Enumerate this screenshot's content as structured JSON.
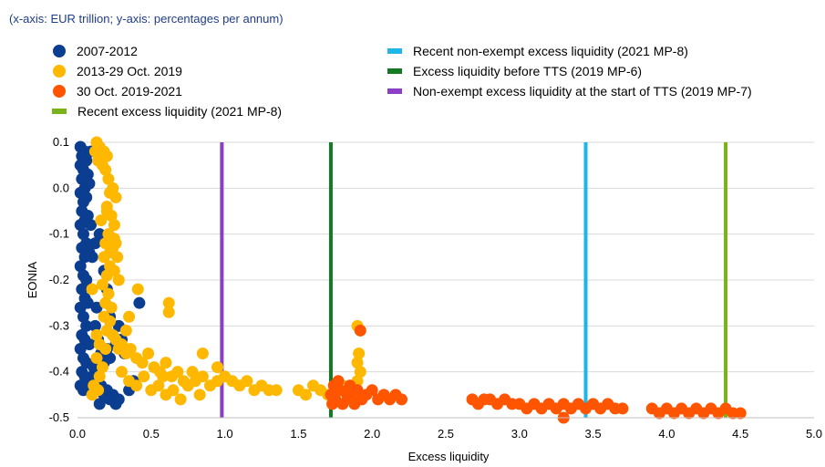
{
  "chart_data": {
    "type": "scatter",
    "subtitle": "(x-axis: EUR trillion; y-axis: percentages per annum)",
    "xlabel": "Excess liquidity",
    "ylabel": "EONIA",
    "xlim": [
      0,
      5
    ],
    "ylim": [
      -0.5,
      0.1
    ],
    "xticks": [
      "0.0",
      "0.5",
      "1.0",
      "1.5",
      "2.0",
      "2.5",
      "3.0",
      "3.5",
      "4.0",
      "4.5",
      "5.0"
    ],
    "yticks": [
      "0.1",
      "0.0",
      "-0.1",
      "-0.2",
      "-0.3",
      "-0.4",
      "-0.5"
    ],
    "grid": true,
    "legend_position": "top",
    "series": [
      {
        "name": "2007-2012",
        "kind": "scatter",
        "color": "#0b3d91",
        "points": [
          [
            0.02,
            0.09
          ],
          [
            0.03,
            0.07
          ],
          [
            0.05,
            0.08
          ],
          [
            0.02,
            0.05
          ],
          [
            0.04,
            0.04
          ],
          [
            0.06,
            0.06
          ],
          [
            0.03,
            0.02
          ],
          [
            0.05,
            0.0
          ],
          [
            0.02,
            -0.01
          ],
          [
            0.07,
            0.03
          ],
          [
            0.04,
            -0.03
          ],
          [
            0.06,
            -0.02
          ],
          [
            0.03,
            -0.05
          ],
          [
            0.05,
            -0.07
          ],
          [
            0.02,
            -0.08
          ],
          [
            0.07,
            -0.06
          ],
          [
            0.04,
            -0.1
          ],
          [
            0.06,
            -0.12
          ],
          [
            0.03,
            -0.13
          ],
          [
            0.05,
            -0.15
          ],
          [
            0.02,
            -0.17
          ],
          [
            0.08,
            -0.14
          ],
          [
            0.04,
            -0.19
          ],
          [
            0.06,
            -0.2
          ],
          [
            0.03,
            -0.22
          ],
          [
            0.05,
            -0.24
          ],
          [
            0.02,
            -0.26
          ],
          [
            0.07,
            -0.25
          ],
          [
            0.04,
            -0.28
          ],
          [
            0.06,
            -0.3
          ],
          [
            0.03,
            -0.32
          ],
          [
            0.05,
            -0.33
          ],
          [
            0.02,
            -0.35
          ],
          [
            0.08,
            -0.34
          ],
          [
            0.04,
            -0.37
          ],
          [
            0.06,
            -0.38
          ],
          [
            0.03,
            -0.4
          ],
          [
            0.05,
            -0.41
          ],
          [
            0.02,
            -0.43
          ],
          [
            0.07,
            -0.42
          ],
          [
            0.04,
            -0.44
          ],
          [
            0.09,
            -0.43
          ],
          [
            0.1,
            -0.41
          ],
          [
            0.11,
            -0.39
          ],
          [
            0.12,
            -0.42
          ],
          [
            0.14,
            -0.44
          ],
          [
            0.16,
            -0.43
          ],
          [
            0.18,
            -0.45
          ],
          [
            0.2,
            -0.44
          ],
          [
            0.22,
            -0.46
          ],
          [
            0.24,
            -0.45
          ],
          [
            0.26,
            -0.47
          ],
          [
            0.28,
            -0.46
          ],
          [
            0.15,
            -0.47
          ],
          [
            0.12,
            -0.3
          ],
          [
            0.14,
            -0.33
          ],
          [
            0.16,
            -0.36
          ],
          [
            0.18,
            -0.38
          ],
          [
            0.2,
            -0.35
          ],
          [
            0.22,
            -0.37
          ],
          [
            0.24,
            -0.32
          ],
          [
            0.26,
            -0.34
          ],
          [
            0.28,
            -0.3
          ],
          [
            0.3,
            -0.33
          ],
          [
            0.32,
            -0.36
          ],
          [
            0.1,
            -0.15
          ],
          [
            0.12,
            -0.12
          ],
          [
            0.15,
            -0.1
          ],
          [
            0.18,
            -0.18
          ],
          [
            0.2,
            -0.22
          ],
          [
            0.22,
            -0.28
          ],
          [
            0.13,
            -0.26
          ],
          [
            0.09,
            0.08
          ],
          [
            0.08,
            0.01
          ],
          [
            0.09,
            -0.08
          ],
          [
            0.42,
            -0.25
          ],
          [
            0.35,
            -0.44
          ],
          [
            0.38,
            -0.42
          ]
        ]
      },
      {
        "name": "2013-29 Oct. 2019",
        "kind": "scatter",
        "color": "#ffb800",
        "points": [
          [
            0.13,
            0.1
          ],
          [
            0.15,
            0.09
          ],
          [
            0.18,
            0.08
          ],
          [
            0.2,
            0.07
          ],
          [
            0.17,
            0.05
          ],
          [
            0.19,
            0.04
          ],
          [
            0.21,
            0.02
          ],
          [
            0.14,
            0.06
          ],
          [
            0.22,
            -0.01
          ],
          [
            0.26,
            -0.02
          ],
          [
            0.2,
            -0.04
          ],
          [
            0.23,
            -0.06
          ],
          [
            0.25,
            -0.08
          ],
          [
            0.21,
            -0.1
          ],
          [
            0.19,
            -0.12
          ],
          [
            0.24,
            -0.13
          ],
          [
            0.18,
            -0.15
          ],
          [
            0.22,
            -0.17
          ],
          [
            0.2,
            -0.19
          ],
          [
            0.25,
            -0.18
          ],
          [
            0.17,
            -0.21
          ],
          [
            0.21,
            -0.23
          ],
          [
            0.19,
            -0.25
          ],
          [
            0.23,
            -0.26
          ],
          [
            0.18,
            -0.28
          ],
          [
            0.22,
            -0.29
          ],
          [
            0.2,
            -0.31
          ],
          [
            0.24,
            -0.32
          ],
          [
            0.15,
            -0.34
          ],
          [
            0.19,
            -0.35
          ],
          [
            0.13,
            -0.37
          ],
          [
            0.17,
            -0.39
          ],
          [
            0.15,
            -0.41
          ],
          [
            0.11,
            -0.43
          ],
          [
            0.14,
            -0.44
          ],
          [
            0.1,
            -0.45
          ],
          [
            0.26,
            -0.33
          ],
          [
            0.28,
            -0.35
          ],
          [
            0.3,
            -0.34
          ],
          [
            0.33,
            -0.36
          ],
          [
            0.36,
            -0.35
          ],
          [
            0.4,
            -0.37
          ],
          [
            0.44,
            -0.38
          ],
          [
            0.48,
            -0.36
          ],
          [
            0.52,
            -0.39
          ],
          [
            0.56,
            -0.4
          ],
          [
            0.6,
            -0.38
          ],
          [
            0.64,
            -0.41
          ],
          [
            0.68,
            -0.4
          ],
          [
            0.72,
            -0.42
          ],
          [
            0.3,
            -0.4
          ],
          [
            0.35,
            -0.42
          ],
          [
            0.4,
            -0.43
          ],
          [
            0.45,
            -0.41
          ],
          [
            0.5,
            -0.44
          ],
          [
            0.55,
            -0.43
          ],
          [
            0.6,
            -0.45
          ],
          [
            0.65,
            -0.44
          ],
          [
            0.7,
            -0.46
          ],
          [
            0.75,
            -0.43
          ],
          [
            0.8,
            -0.42
          ],
          [
            0.85,
            -0.41
          ],
          [
            0.9,
            -0.43
          ],
          [
            0.95,
            -0.42
          ],
          [
            1.0,
            -0.41
          ],
          [
            1.05,
            -0.42
          ],
          [
            1.1,
            -0.43
          ],
          [
            1.15,
            -0.42
          ],
          [
            1.2,
            -0.44
          ],
          [
            1.25,
            -0.43
          ],
          [
            1.3,
            -0.44
          ],
          [
            1.35,
            -0.44
          ],
          [
            1.5,
            -0.44
          ],
          [
            1.55,
            -0.45
          ],
          [
            1.6,
            -0.43
          ],
          [
            1.65,
            -0.44
          ],
          [
            1.7,
            -0.45
          ],
          [
            1.75,
            -0.44
          ],
          [
            1.8,
            -0.43
          ],
          [
            1.85,
            -0.44
          ],
          [
            1.9,
            -0.42
          ],
          [
            1.92,
            -0.4
          ],
          [
            1.9,
            -0.38
          ],
          [
            1.91,
            -0.36
          ],
          [
            1.9,
            -0.3
          ],
          [
            0.62,
            -0.25
          ],
          [
            0.62,
            -0.27
          ],
          [
            0.41,
            -0.22
          ],
          [
            0.35,
            -0.28
          ],
          [
            0.33,
            -0.31
          ],
          [
            0.26,
            -0.12
          ],
          [
            0.27,
            -0.15
          ],
          [
            0.28,
            -0.2
          ],
          [
            0.25,
            -0.11
          ],
          [
            0.22,
            -0.14
          ],
          [
            0.85,
            -0.36
          ],
          [
            0.95,
            -0.39
          ],
          [
            0.2,
            -0.05
          ],
          [
            0.16,
            -0.07
          ],
          [
            0.24,
            0.0
          ],
          [
            0.12,
            0.08
          ],
          [
            0.1,
            -0.22
          ],
          [
            0.13,
            -0.32
          ],
          [
            0.78,
            -0.4
          ],
          [
            0.83,
            -0.45
          ],
          [
            0.58,
            -0.41
          ]
        ]
      },
      {
        "name": "30 Oct. 2019-2021",
        "kind": "scatter",
        "color": "#ff5500",
        "points": [
          [
            1.72,
            -0.45
          ],
          [
            1.75,
            -0.46
          ],
          [
            1.78,
            -0.44
          ],
          [
            1.8,
            -0.47
          ],
          [
            1.83,
            -0.45
          ],
          [
            1.86,
            -0.46
          ],
          [
            1.9,
            -0.44
          ],
          [
            1.93,
            -0.46
          ],
          [
            1.96,
            -0.45
          ],
          [
            2.0,
            -0.44
          ],
          [
            2.04,
            -0.46
          ],
          [
            2.08,
            -0.45
          ],
          [
            2.12,
            -0.46
          ],
          [
            2.16,
            -0.45
          ],
          [
            2.2,
            -0.46
          ],
          [
            1.74,
            -0.43
          ],
          [
            1.77,
            -0.42
          ],
          [
            1.85,
            -0.43
          ],
          [
            1.92,
            -0.31
          ],
          [
            1.73,
            -0.47
          ],
          [
            1.88,
            -0.47
          ],
          [
            2.68,
            -0.46
          ],
          [
            2.72,
            -0.47
          ],
          [
            2.76,
            -0.46
          ],
          [
            2.8,
            -0.46
          ],
          [
            2.85,
            -0.47
          ],
          [
            2.9,
            -0.46
          ],
          [
            2.95,
            -0.47
          ],
          [
            3.0,
            -0.47
          ],
          [
            3.05,
            -0.48
          ],
          [
            3.1,
            -0.47
          ],
          [
            3.15,
            -0.48
          ],
          [
            3.2,
            -0.47
          ],
          [
            3.25,
            -0.48
          ],
          [
            3.3,
            -0.47
          ],
          [
            3.35,
            -0.48
          ],
          [
            3.4,
            -0.47
          ],
          [
            3.45,
            -0.48
          ],
          [
            3.5,
            -0.47
          ],
          [
            3.55,
            -0.48
          ],
          [
            3.6,
            -0.47
          ],
          [
            3.65,
            -0.48
          ],
          [
            3.7,
            -0.48
          ],
          [
            3.3,
            -0.5
          ],
          [
            3.9,
            -0.48
          ],
          [
            3.95,
            -0.49
          ],
          [
            4.0,
            -0.48
          ],
          [
            4.05,
            -0.49
          ],
          [
            4.1,
            -0.48
          ],
          [
            4.15,
            -0.49
          ],
          [
            4.2,
            -0.48
          ],
          [
            4.25,
            -0.49
          ],
          [
            4.3,
            -0.48
          ],
          [
            4.35,
            -0.49
          ],
          [
            4.4,
            -0.48
          ],
          [
            4.45,
            -0.49
          ],
          [
            4.5,
            -0.49
          ]
        ]
      },
      {
        "name": "Recent excess liquidity (2021 MP-8)",
        "kind": "vline",
        "x": 4.4,
        "color": "#7ab317"
      },
      {
        "name": "Recent non-exempt excess liquidity (2021 MP-8)",
        "kind": "vline",
        "x": 3.45,
        "color": "#1fb5e6"
      },
      {
        "name": "Excess liquidity before TTS (2019 MP-6)",
        "kind": "vline",
        "x": 1.72,
        "color": "#137a23"
      },
      {
        "name": "Non-exempt excess liquidity at the start of TTS (2019 MP-7)",
        "kind": "vline",
        "x": 0.98,
        "color": "#8a3fc6"
      }
    ]
  }
}
